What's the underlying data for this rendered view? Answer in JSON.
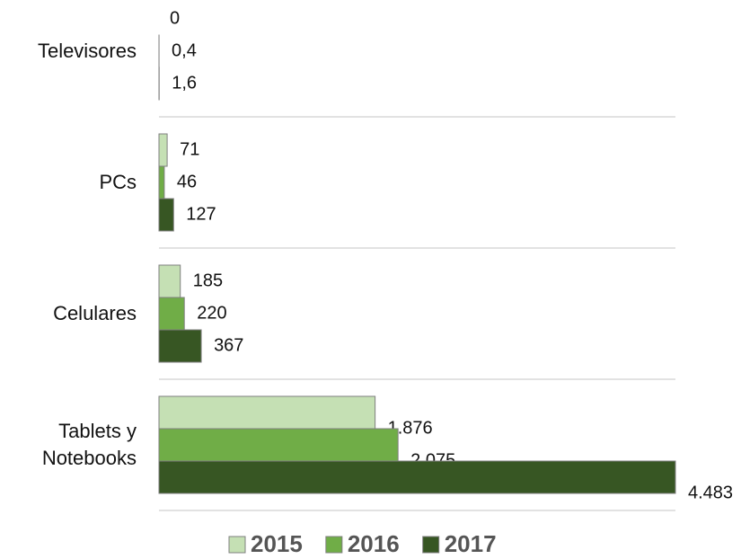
{
  "chart_data": {
    "type": "barh",
    "categories": [
      "Televisores",
      "PCs",
      "Celulares",
      "Tablets y Notebooks"
    ],
    "series": [
      {
        "name": "2015",
        "color": "#c5e0b4",
        "values": [
          0,
          71,
          185,
          1876
        ],
        "value_labels": [
          "0",
          "71",
          "185",
          "1.876"
        ]
      },
      {
        "name": "2016",
        "color": "#70ad47",
        "values": [
          0.4,
          46,
          220,
          2075
        ],
        "value_labels": [
          "0,4",
          "46",
          "220",
          "2.075"
        ]
      },
      {
        "name": "2017",
        "color": "#375623",
        "values": [
          1.6,
          127,
          367,
          4483
        ],
        "value_labels": [
          "1,6",
          "127",
          "367",
          "4.483"
        ]
      }
    ],
    "legend": "bottom"
  }
}
